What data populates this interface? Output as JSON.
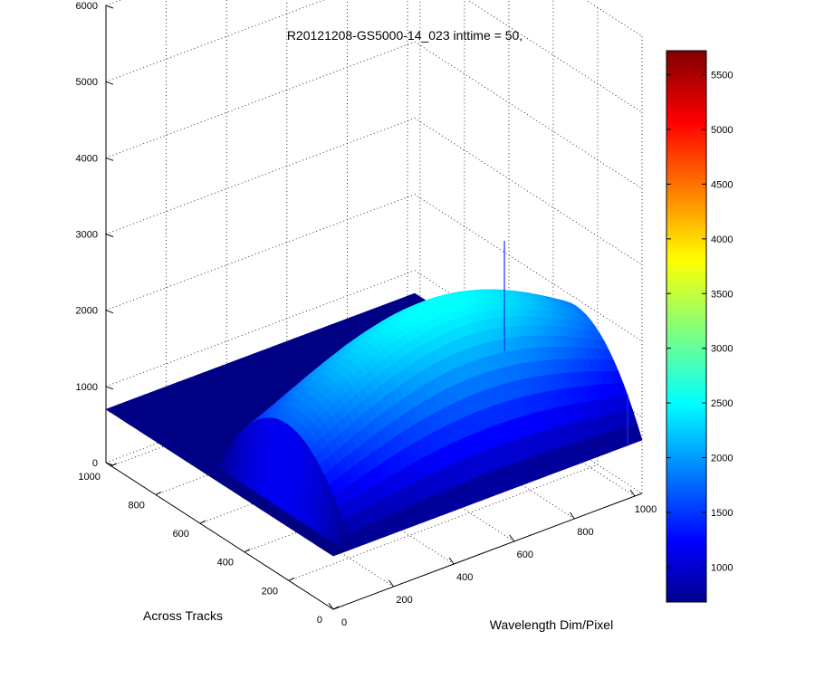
{
  "chart_data": {
    "type": "surface",
    "title": "R20121208-GS5000-14_023 inttime = 50,",
    "xlabel": "Wavelength Dim/Pixel",
    "ylabel": "Across Tracks",
    "zlabel": "",
    "x_ticks": [
      "0",
      "200",
      "400",
      "600",
      "800",
      "1000"
    ],
    "y_ticks": [
      "0",
      "200",
      "400",
      "600",
      "800",
      "1000"
    ],
    "z_ticks": [
      "0",
      "1000",
      "2000",
      "3000",
      "4000",
      "5000",
      "6000"
    ],
    "xlim": [
      0,
      1024
    ],
    "ylim": [
      0,
      1024
    ],
    "zlim": [
      0,
      6000
    ],
    "grid": true,
    "colormap": "jet",
    "colorbar": {
      "range": [
        680,
        5720
      ],
      "ticks": [
        "1000",
        "1500",
        "2000",
        "2500",
        "3000",
        "3500",
        "4000",
        "4500",
        "5000",
        "5500"
      ],
      "location": "right"
    },
    "background_level": 700,
    "signal_region": {
      "x_range": [
        50,
        1024
      ],
      "y_range": [
        0,
        600
      ],
      "peak_value": 2600,
      "peak_y": 300
    },
    "spikes": [
      {
        "x": 1024,
        "y": 620,
        "z": 2150
      },
      {
        "x": 980,
        "y": 5,
        "z": 1350
      }
    ],
    "colors": {
      "background_plane": "#0a14a0",
      "axes": "#000000"
    }
  }
}
